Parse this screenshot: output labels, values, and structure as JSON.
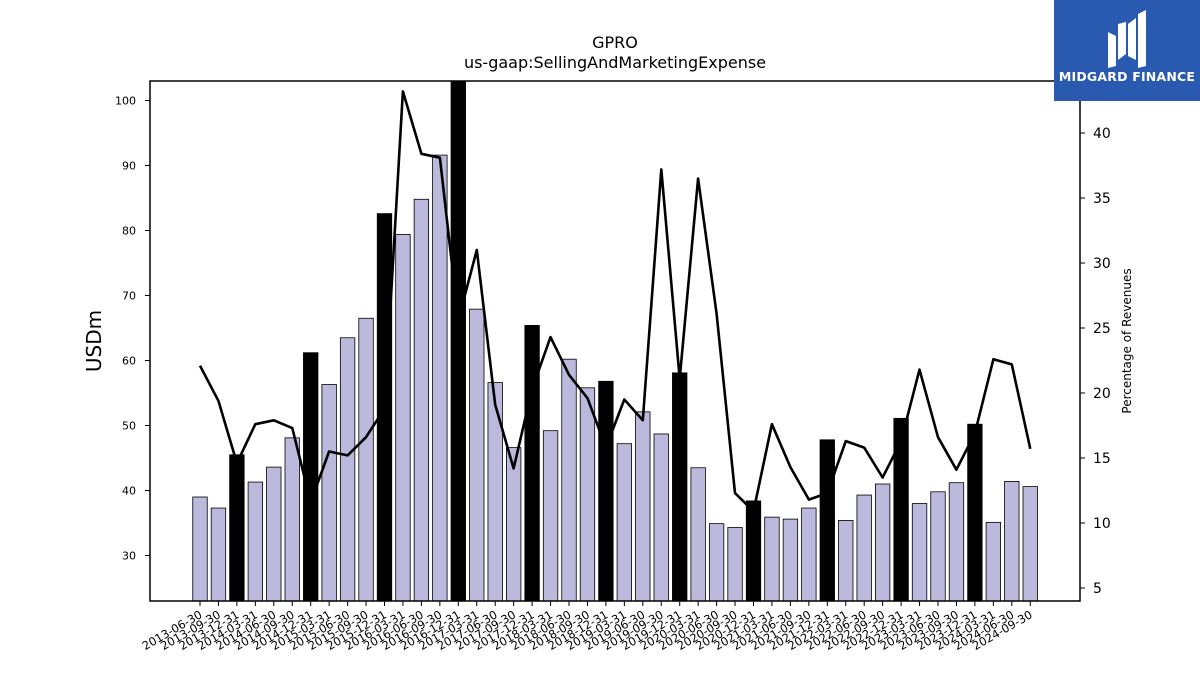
{
  "chart_data": {
    "type": "bar",
    "title": "GPRO",
    "subtitle": "us-gaap:SellingAndMarketingExpense",
    "ylabel": "USDm",
    "y2label": "Percentage of Revenues",
    "ylim": [
      23,
      103
    ],
    "y2lim": [
      4.0,
      44.0
    ],
    "yticks": [
      30,
      40,
      50,
      60,
      70,
      80,
      90,
      100
    ],
    "y2ticks": [
      5,
      10,
      15,
      20,
      25,
      30,
      35,
      40
    ],
    "colors": {
      "bar": "#bcb9dc",
      "highlight": "#000000",
      "line": "#000000"
    },
    "categories": [
      "2013-06-30",
      "2013-09-30",
      "2013-12-31",
      "2014-03-31",
      "2014-06-30",
      "2014-09-30",
      "2014-12-31",
      "2015-03-31",
      "2015-06-30",
      "2015-09-30",
      "2015-12-31",
      "2016-03-31",
      "2016-06-30",
      "2016-09-30",
      "2016-12-31",
      "2017-03-31",
      "2017-06-30",
      "2017-09-30",
      "2017-12-31",
      "2018-03-31",
      "2018-06-30",
      "2018-09-30",
      "2018-12-31",
      "2019-03-31",
      "2019-06-30",
      "2019-09-30",
      "2019-12-31",
      "2020-03-31",
      "2020-06-30",
      "2020-09-30",
      "2020-12-31",
      "2021-03-31",
      "2021-06-30",
      "2021-09-30",
      "2021-12-31",
      "2022-03-31",
      "2022-06-30",
      "2022-09-30",
      "2022-12-31",
      "2023-03-31",
      "2023-06-30",
      "2023-09-30",
      "2023-12-31",
      "2024-03-31",
      "2024-06-30",
      "2024-09-30"
    ],
    "highlighted": [
      "2013-12-31",
      "2014-12-31",
      "2015-12-31",
      "2016-12-31",
      "2017-12-31",
      "2018-12-31",
      "2019-12-31",
      "2020-12-31",
      "2021-12-31",
      "2022-12-31",
      "2023-12-31"
    ],
    "series": [
      {
        "name": "USDm",
        "values": [
          39.0,
          37.3,
          45.5,
          41.3,
          43.6,
          48.1,
          61.2,
          56.3,
          63.5,
          66.5,
          82.6,
          79.4,
          84.8,
          91.6,
          103.0,
          67.9,
          56.6,
          46.6,
          65.4,
          49.2,
          60.2,
          55.8,
          56.8,
          47.2,
          52.1,
          48.7,
          58.1,
          43.5,
          34.9,
          34.3,
          38.4,
          35.9,
          35.6,
          37.3,
          47.8,
          35.4,
          39.3,
          41.0,
          51.1,
          38.0,
          39.8,
          41.2,
          50.2,
          35.1,
          41.4,
          40.6
        ]
      },
      {
        "name": "Percentage of Revenues",
        "values": [
          22.1,
          19.4,
          14.6,
          17.6,
          17.9,
          17.3,
          11.6,
          15.5,
          15.2,
          16.6,
          18.8,
          43.2,
          38.4,
          38.1,
          25.6,
          31.0,
          19.1,
          14.2,
          20.3,
          24.3,
          21.4,
          19.6,
          15.8,
          19.5,
          17.9,
          37.2,
          21.1,
          36.5,
          26.1,
          12.3,
          10.9,
          17.6,
          14.3,
          11.8,
          12.3,
          16.3,
          15.8,
          13.5,
          16.3,
          21.8,
          16.6,
          14.1,
          16.9,
          22.6,
          22.2,
          15.7
        ]
      }
    ]
  },
  "logo": {
    "text": "MIDGARD FINANCE",
    "icon": "midgard-logo-icon"
  }
}
